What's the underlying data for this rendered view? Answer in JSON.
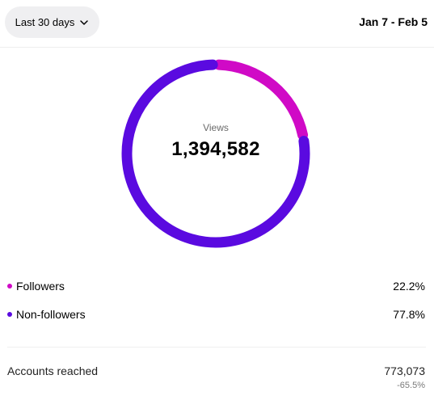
{
  "header": {
    "range_label": "Last 30 days",
    "range_icon": "chevron-down-icon",
    "date_range": "Jan 7 - Feb 5"
  },
  "donut": {
    "center_label": "Views",
    "center_value": "1,394,582"
  },
  "legend": [
    {
      "label": "Followers",
      "value": "22.2%",
      "percent": 22.2,
      "color": "#d00ac6"
    },
    {
      "label": "Non-followers",
      "value": "77.8%",
      "percent": 77.8,
      "color": "#5a0ae0"
    }
  ],
  "accounts_reached": {
    "label": "Accounts reached",
    "value": "773,073",
    "change": "-65.5%"
  }
}
